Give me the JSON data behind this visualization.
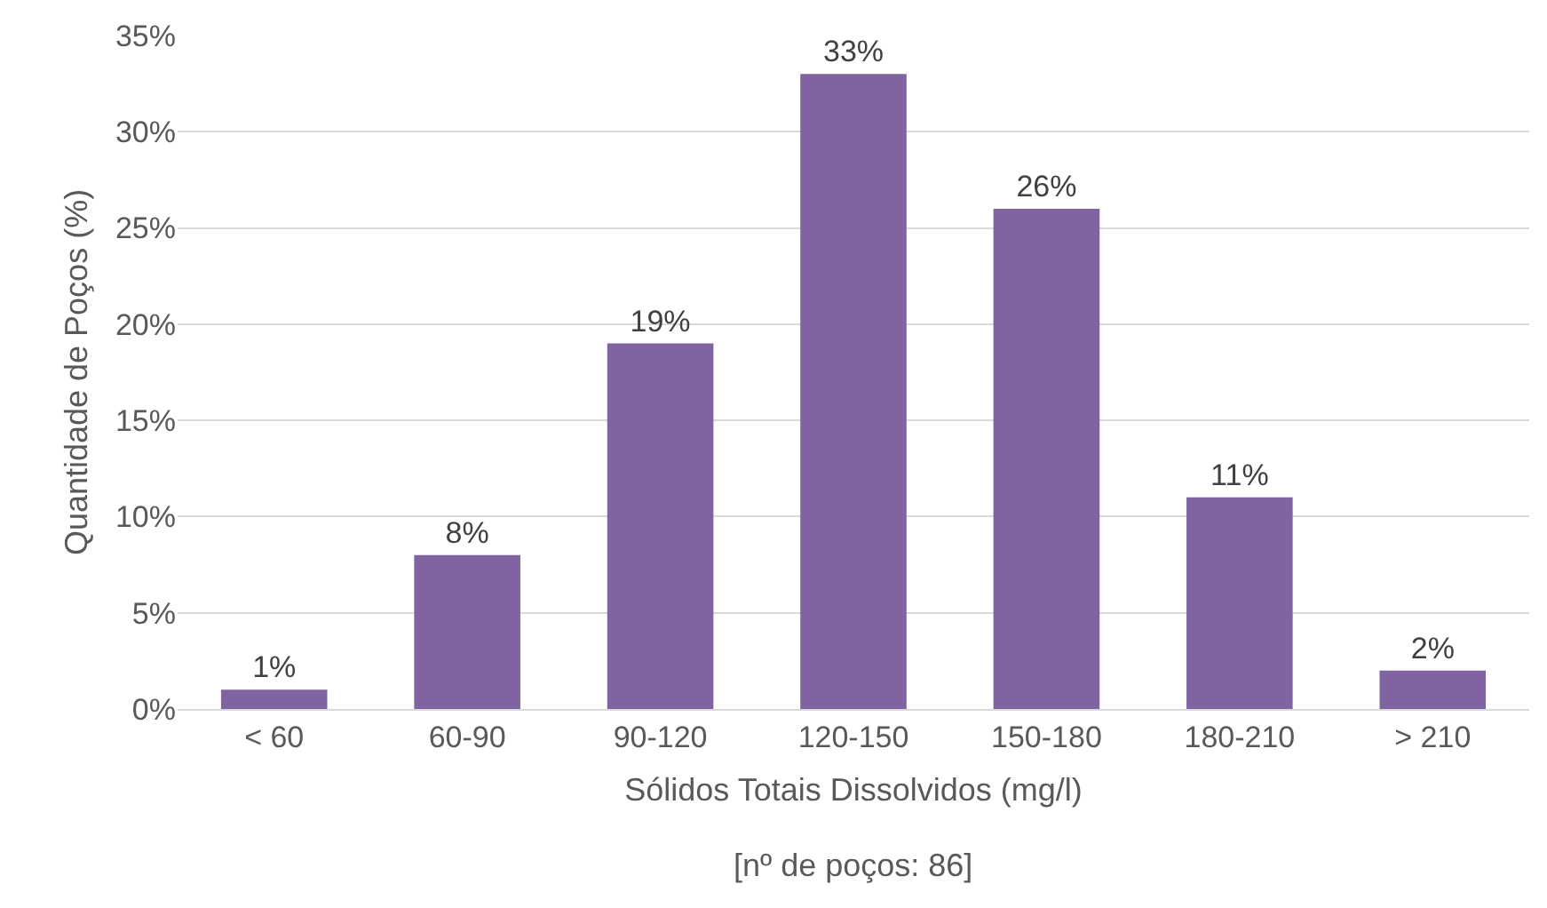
{
  "chart_data": {
    "type": "bar",
    "xlabel": "Sólidos Totais Dissolvidos (mg/l)",
    "ylabel": "Quantidade de Poços (%)",
    "annotations": [
      "[nº de poços: 86]"
    ],
    "categories": [
      "< 60",
      "60-90",
      "90-120",
      "120-150",
      "150-180",
      "180-210",
      "> 210"
    ],
    "values": [
      1,
      8,
      19,
      33,
      26,
      11,
      2
    ],
    "color": "#8064a2",
    "value_labels": [
      "1%",
      "8%",
      "19%",
      "33%",
      "26%",
      "11%",
      "2%"
    ],
    "ylim": [
      0,
      35
    ],
    "yticks": [
      {
        "value": 0,
        "label": "0%"
      },
      {
        "value": 5,
        "label": "5%"
      },
      {
        "value": 10,
        "label": "10%"
      },
      {
        "value": 15,
        "label": "15%"
      },
      {
        "value": 20,
        "label": "20%"
      },
      {
        "value": 25,
        "label": "25%"
      },
      {
        "value": 30,
        "label": "30%"
      },
      {
        "value": 35,
        "label": "35%"
      }
    ],
    "grid": "y",
    "legend": false
  }
}
